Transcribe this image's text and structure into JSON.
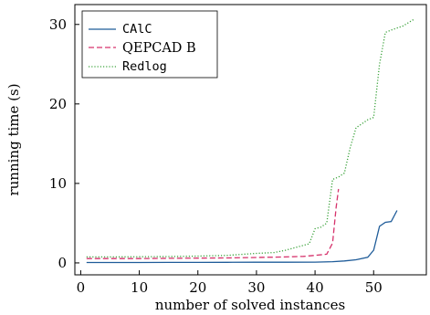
{
  "chart_data": {
    "type": "line",
    "xlabel": "number of solved instances",
    "ylabel": "running time (s)",
    "xlim": [
      -1,
      59
    ],
    "ylim": [
      -1.5,
      32.5
    ],
    "xticks": [
      0,
      10,
      20,
      30,
      40,
      50
    ],
    "yticks": [
      0,
      10,
      20,
      30
    ],
    "legend_position": "top-left",
    "grid": false,
    "series": [
      {
        "name": "CAlC",
        "color": "#1f5c99",
        "dash": "solid",
        "points": [
          [
            1,
            0.05
          ],
          [
            5,
            0.05
          ],
          [
            10,
            0.05
          ],
          [
            15,
            0.06
          ],
          [
            20,
            0.06
          ],
          [
            25,
            0.07
          ],
          [
            30,
            0.08
          ],
          [
            35,
            0.09
          ],
          [
            40,
            0.1
          ],
          [
            43,
            0.15
          ],
          [
            45,
            0.25
          ],
          [
            47,
            0.4
          ],
          [
            49,
            0.7
          ],
          [
            50,
            1.6
          ],
          [
            51,
            4.6
          ],
          [
            52,
            5.1
          ],
          [
            53,
            5.2
          ],
          [
            54,
            6.6
          ]
        ]
      },
      {
        "name": "QEPCAD B",
        "color": "#d6336c",
        "dash": "dashed",
        "points": [
          [
            1,
            0.55
          ],
          [
            5,
            0.55
          ],
          [
            10,
            0.55
          ],
          [
            15,
            0.58
          ],
          [
            20,
            0.6
          ],
          [
            25,
            0.62
          ],
          [
            30,
            0.68
          ],
          [
            35,
            0.75
          ],
          [
            38,
            0.82
          ],
          [
            40,
            0.95
          ],
          [
            42,
            1.1
          ],
          [
            43,
            2.5
          ],
          [
            43.6,
            7.0
          ],
          [
            44,
            9.3
          ]
        ]
      },
      {
        "name": "Redlog",
        "color": "#3aa23a",
        "dash": "dotted",
        "points": [
          [
            1,
            0.75
          ],
          [
            5,
            0.75
          ],
          [
            10,
            0.78
          ],
          [
            15,
            0.8
          ],
          [
            20,
            0.85
          ],
          [
            25,
            0.95
          ],
          [
            30,
            1.2
          ],
          [
            33,
            1.3
          ],
          [
            35,
            1.6
          ],
          [
            37,
            2.0
          ],
          [
            39,
            2.4
          ],
          [
            40,
            4.3
          ],
          [
            41,
            4.5
          ],
          [
            42,
            5.0
          ],
          [
            43,
            10.5
          ],
          [
            44,
            10.8
          ],
          [
            45,
            11.3
          ],
          [
            46,
            14.5
          ],
          [
            47,
            17.0
          ],
          [
            48,
            17.5
          ],
          [
            49,
            18.0
          ],
          [
            50,
            18.3
          ],
          [
            51,
            25.0
          ],
          [
            52,
            29.0
          ],
          [
            53,
            29.3
          ],
          [
            55,
            29.8
          ],
          [
            57,
            30.7
          ]
        ]
      }
    ]
  }
}
